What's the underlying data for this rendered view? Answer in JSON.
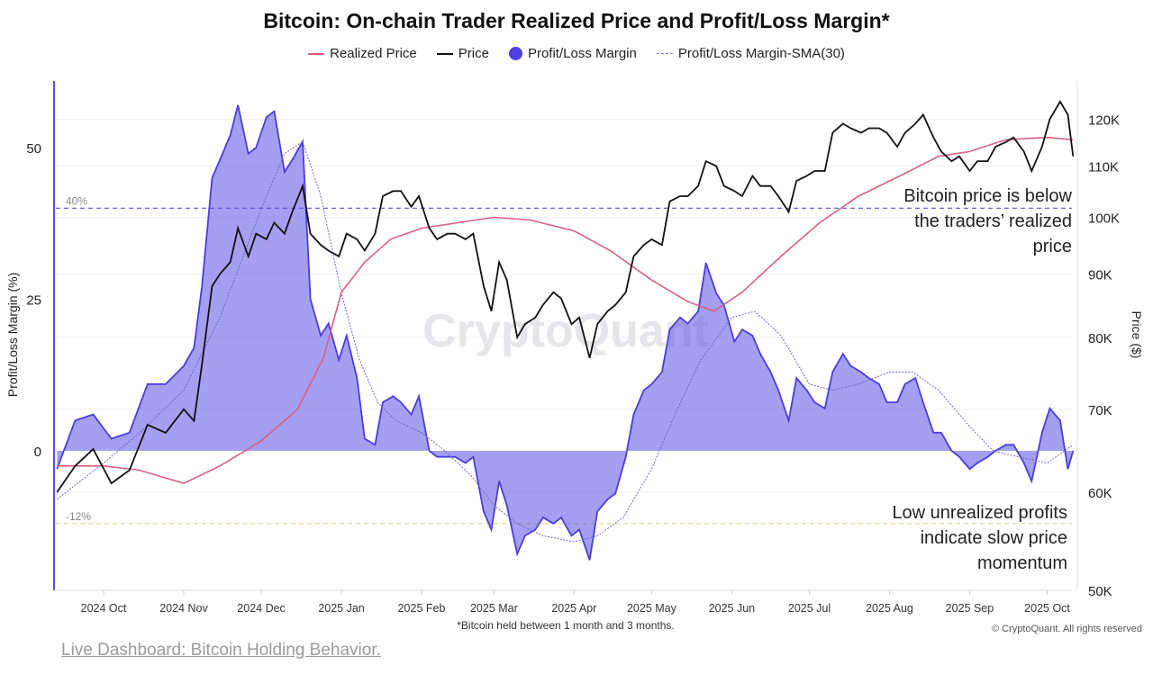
{
  "title": "Bitcoin: On-chain Trader Realized Price and Profit/Loss Margin*",
  "legend": [
    {
      "label": "Realized Price",
      "color": "#d9607f",
      "kind": "line"
    },
    {
      "label": "Price",
      "color": "#111111",
      "kind": "line"
    },
    {
      "label": "Profit/Loss Margin",
      "color": "#4f3ee0",
      "kind": "dot"
    },
    {
      "label": "Profit/Loss Margin-SMA(30)",
      "color": "#7b74c8",
      "kind": "dash"
    }
  ],
  "annotations": {
    "price_note": [
      "Bitcoin price is below",
      "the traders’ realized",
      "price"
    ],
    "margin_note": [
      "Low unrealized profits",
      "indicate slow price",
      "momentum"
    ]
  },
  "footnote": "*Bitcoin held between 1 month and 3 months.",
  "copyright": "© CryptoQuant. All rights reserved",
  "watermark": "CryptoQuant",
  "link_text": "Live Dashboard: Bitcoin Holding Behavior.",
  "chart_data": {
    "type": "area+line",
    "title": "Bitcoin: On-chain Trader Realized Price and Profit/Loss Margin*",
    "ylabel_left": "Profit/Loss Margin (%)",
    "ylabel_right": "Price ($)",
    "yticks_left": [
      {
        "v": 0,
        "label": "0"
      },
      {
        "v": 25,
        "label": "25"
      },
      {
        "v": 50,
        "label": "50"
      }
    ],
    "yticks_right": [
      {
        "v": 50000,
        "label": "50K"
      },
      {
        "v": 60000,
        "label": "60K"
      },
      {
        "v": 70000,
        "label": "70K"
      },
      {
        "v": 80000,
        "label": "80K"
      },
      {
        "v": 90000,
        "label": "90K"
      },
      {
        "v": 100000,
        "label": "100K"
      },
      {
        "v": 110000,
        "label": "110K"
      },
      {
        "v": 120000,
        "label": "120K"
      }
    ],
    "right_scale": "log",
    "xticks": [
      {
        "date": "2024-10-01",
        "label": "2024 Oct"
      },
      {
        "date": "2024-11-01",
        "label": "2024 Nov"
      },
      {
        "date": "2024-12-01",
        "label": "2024 Dec"
      },
      {
        "date": "2025-01-01",
        "label": "2025 Jan"
      },
      {
        "date": "2025-02-01",
        "label": "2025 Feb"
      },
      {
        "date": "2025-03-01",
        "label": "2025 Mar"
      },
      {
        "date": "2025-04-01",
        "label": "2025 Apr"
      },
      {
        "date": "2025-05-01",
        "label": "2025 May"
      },
      {
        "date": "2025-06-01",
        "label": "2025 Jun"
      },
      {
        "date": "2025-07-01",
        "label": "2025 Jul"
      },
      {
        "date": "2025-08-01",
        "label": "2025 Aug"
      },
      {
        "date": "2025-09-01",
        "label": "2025 Sep"
      },
      {
        "date": "2025-10-01",
        "label": "2025 Oct"
      }
    ],
    "reference_lines": [
      {
        "value": 40,
        "label": "40%",
        "color": "#6b5fe0"
      },
      {
        "value": -12,
        "label": "-12%",
        "color": "#e3d98a"
      }
    ],
    "dates": [
      "2024-09-13",
      "2024-09-20",
      "2024-09-27",
      "2024-10-04",
      "2024-10-11",
      "2024-10-18",
      "2024-10-25",
      "2024-11-01",
      "2024-11-05",
      "2024-11-08",
      "2024-11-12",
      "2024-11-15",
      "2024-11-19",
      "2024-11-22",
      "2024-11-26",
      "2024-11-29",
      "2024-12-03",
      "2024-12-06",
      "2024-12-10",
      "2024-12-13",
      "2024-12-17",
      "2024-12-20",
      "2024-12-24",
      "2024-12-27",
      "2024-12-31",
      "2025-01-03",
      "2025-01-07",
      "2025-01-10",
      "2025-01-14",
      "2025-01-17",
      "2025-01-21",
      "2025-01-24",
      "2025-01-28",
      "2025-01-31",
      "2025-02-04",
      "2025-02-07",
      "2025-02-11",
      "2025-02-14",
      "2025-02-18",
      "2025-02-21",
      "2025-02-25",
      "2025-02-28",
      "2025-03-03",
      "2025-03-06",
      "2025-03-10",
      "2025-03-13",
      "2025-03-17",
      "2025-03-20",
      "2025-03-24",
      "2025-03-27",
      "2025-03-31",
      "2025-04-03",
      "2025-04-07",
      "2025-04-10",
      "2025-04-14",
      "2025-04-17",
      "2025-04-21",
      "2025-04-24",
      "2025-04-28",
      "2025-05-01",
      "2025-05-05",
      "2025-05-08",
      "2025-05-12",
      "2025-05-15",
      "2025-05-19",
      "2025-05-22",
      "2025-05-26",
      "2025-05-29",
      "2025-06-02",
      "2025-06-05",
      "2025-06-09",
      "2025-06-12",
      "2025-06-16",
      "2025-06-19",
      "2025-06-23",
      "2025-06-26",
      "2025-06-30",
      "2025-07-03",
      "2025-07-07",
      "2025-07-10",
      "2025-07-14",
      "2025-07-17",
      "2025-07-21",
      "2025-07-24",
      "2025-07-28",
      "2025-07-31",
      "2025-08-04",
      "2025-08-07",
      "2025-08-11",
      "2025-08-14",
      "2025-08-18",
      "2025-08-21",
      "2025-08-25",
      "2025-08-28",
      "2025-09-01",
      "2025-09-04",
      "2025-09-08",
      "2025-09-11",
      "2025-09-15",
      "2025-09-18",
      "2025-09-22",
      "2025-09-25",
      "2025-09-29",
      "2025-10-02",
      "2025-10-06",
      "2025-10-09",
      "2025-10-11"
    ],
    "series": [
      {
        "name": "Profit/Loss Margin",
        "axis": "left",
        "values": [
          -3,
          5,
          6,
          2,
          3,
          11,
          11,
          14,
          17,
          27,
          45,
          48,
          52,
          57,
          49,
          50,
          55,
          56,
          46,
          48,
          51,
          25,
          19,
          21,
          15,
          19,
          12,
          2,
          1,
          8,
          9,
          8,
          6,
          9,
          0,
          -1,
          -1,
          -1,
          -2,
          -1,
          -10,
          -13,
          -5,
          -9,
          -17,
          -14,
          -13,
          -11,
          -12,
          -11,
          -14,
          -13,
          -18,
          -10,
          -8,
          -7,
          -1,
          6,
          10,
          11,
          13,
          20,
          22,
          21,
          23,
          31,
          26,
          24,
          18,
          20,
          19,
          16,
          13,
          10,
          5,
          12,
          10,
          8,
          7,
          13,
          16,
          14,
          13,
          12,
          11,
          8,
          8,
          11,
          12,
          8,
          3,
          3,
          0,
          -1,
          -3,
          -2,
          -1,
          0,
          1,
          1,
          -2,
          -5,
          3,
          7,
          5,
          -3,
          0
        ]
      },
      {
        "name": "Price",
        "axis": "right",
        "values": [
          60000,
          63000,
          65000,
          61000,
          62500,
          68000,
          67000,
          70000,
          68500,
          76000,
          88000,
          90000,
          92000,
          98000,
          93000,
          97000,
          96000,
          99000,
          97000,
          101000,
          106000,
          97000,
          95000,
          94000,
          93000,
          97000,
          96000,
          94000,
          97000,
          104000,
          105000,
          105000,
          102000,
          104000,
          98000,
          96000,
          97000,
          97000,
          96000,
          97000,
          88000,
          84000,
          92000,
          89000,
          80000,
          82000,
          83000,
          85000,
          87000,
          86000,
          82000,
          83000,
          77000,
          82000,
          84000,
          85000,
          87000,
          93000,
          95000,
          96000,
          95000,
          103000,
          104000,
          104000,
          106000,
          111000,
          110000,
          106000,
          105000,
          104000,
          108000,
          106000,
          106000,
          104000,
          101000,
          107000,
          108000,
          109000,
          109000,
          117000,
          119000,
          118000,
          117000,
          118000,
          118000,
          117000,
          114000,
          117000,
          119000,
          121000,
          116000,
          113000,
          111000,
          112000,
          109000,
          111000,
          111000,
          114000,
          115000,
          116000,
          113000,
          109000,
          114000,
          120000,
          124000,
          121000,
          112000
        ]
      }
    ],
    "realized_price": {
      "name": "Realized Price",
      "axis": "right",
      "dates": [
        "2024-09-13",
        "2024-10-01",
        "2024-10-15",
        "2024-11-01",
        "2024-11-15",
        "2024-12-01",
        "2024-12-15",
        "2024-12-25",
        "2025-01-01",
        "2025-01-10",
        "2025-01-20",
        "2025-02-01",
        "2025-02-15",
        "2025-03-01",
        "2025-03-15",
        "2025-04-01",
        "2025-04-15",
        "2025-05-01",
        "2025-05-15",
        "2025-05-25",
        "2025-06-05",
        "2025-06-20",
        "2025-07-05",
        "2025-07-20",
        "2025-08-05",
        "2025-08-20",
        "2025-09-01",
        "2025-09-15",
        "2025-10-01",
        "2025-10-11"
      ],
      "values": [
        63000,
        63000,
        62500,
        61000,
        63000,
        66000,
        70000,
        77000,
        87000,
        92000,
        96000,
        98000,
        99000,
        100000,
        99500,
        97500,
        94000,
        89000,
        85500,
        84000,
        87000,
        93000,
        99000,
        104000,
        108000,
        112000,
        113000,
        115500,
        116000,
        115500
      ]
    },
    "sma30": {
      "name": "Profit/Loss Margin-SMA(30)",
      "axis": "left",
      "dates": [
        "2024-09-13",
        "2024-10-01",
        "2024-10-15",
        "2024-11-01",
        "2024-11-15",
        "2024-12-01",
        "2024-12-10",
        "2024-12-17",
        "2024-12-24",
        "2025-01-01",
        "2025-01-08",
        "2025-01-15",
        "2025-01-22",
        "2025-02-01",
        "2025-02-10",
        "2025-02-20",
        "2025-03-01",
        "2025-03-10",
        "2025-03-20",
        "2025-04-01",
        "2025-04-10",
        "2025-04-20",
        "2025-05-01",
        "2025-05-10",
        "2025-05-20",
        "2025-06-01",
        "2025-06-10",
        "2025-06-20",
        "2025-07-01",
        "2025-07-10",
        "2025-07-20",
        "2025-08-01",
        "2025-08-10",
        "2025-08-20",
        "2025-09-01",
        "2025-09-10",
        "2025-09-20",
        "2025-10-01",
        "2025-10-11"
      ],
      "values": [
        -8,
        -2,
        3,
        10,
        22,
        40,
        49,
        51,
        42,
        26,
        15,
        8,
        5,
        3,
        0,
        -4,
        -9,
        -12,
        -14,
        -15,
        -14,
        -11,
        -3,
        6,
        15,
        22,
        23,
        19,
        11,
        10,
        11,
        13,
        13,
        10,
        4,
        0,
        -1,
        -2,
        1
      ]
    }
  }
}
